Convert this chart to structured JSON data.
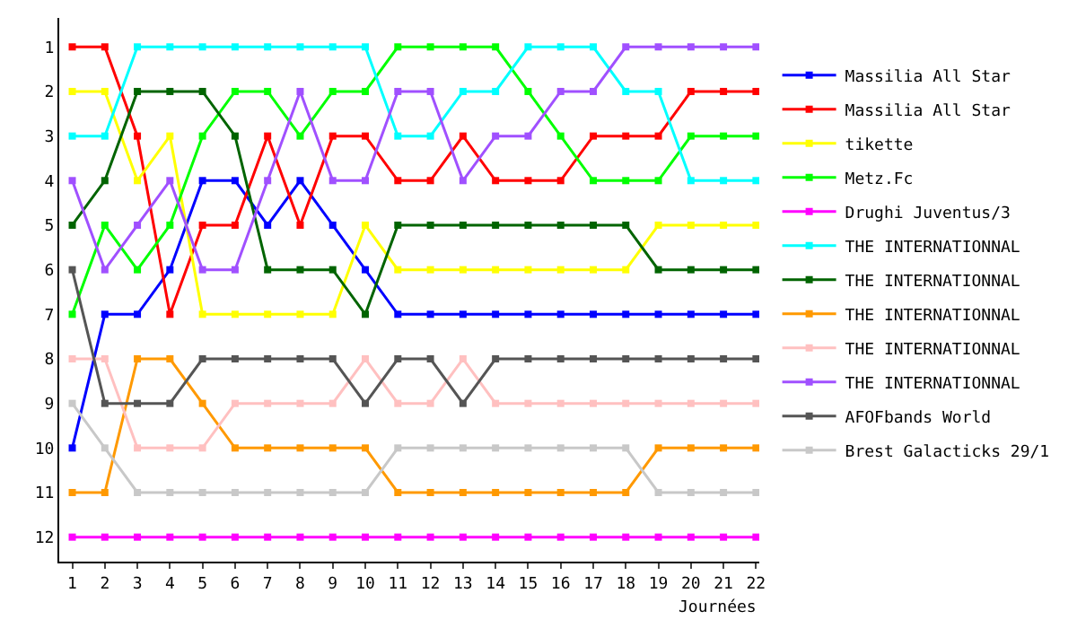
{
  "chart_data": {
    "type": "line",
    "xlabel": "Journées",
    "x": [
      1,
      2,
      3,
      4,
      5,
      6,
      7,
      8,
      9,
      10,
      11,
      12,
      13,
      14,
      15,
      16,
      17,
      18,
      19,
      20,
      21,
      22
    ],
    "xlim": [
      0.6,
      22.1
    ],
    "xticks": [
      1,
      2,
      3,
      4,
      5,
      6,
      7,
      8,
      9,
      10,
      11,
      12,
      13,
      14,
      15,
      16,
      17,
      18,
      19,
      20,
      21,
      22
    ],
    "ylim": [
      12.55,
      0.35
    ],
    "yticks": [
      1,
      2,
      3,
      4,
      5,
      6,
      7,
      8,
      9,
      10,
      11,
      12
    ],
    "legend": "right",
    "marker": "square",
    "line_style": "solid",
    "series": [
      {
        "name": "Massilia All Star",
        "color": "#0000ff",
        "values": [
          10,
          7,
          7,
          6,
          4,
          4,
          5,
          4,
          5,
          6,
          7,
          7,
          7,
          7,
          7,
          7,
          7,
          7,
          7,
          7,
          7,
          7
        ]
      },
      {
        "name": "Massilia All Star",
        "color": "#ff0000",
        "values": [
          1,
          1,
          3,
          7,
          5,
          5,
          3,
          5,
          3,
          3,
          4,
          4,
          3,
          4,
          4,
          4,
          3,
          3,
          3,
          2,
          2,
          2
        ]
      },
      {
        "name": "tikette",
        "color": "#ffff00",
        "values": [
          2,
          2,
          4,
          3,
          7,
          7,
          7,
          7,
          7,
          5,
          6,
          6,
          6,
          6,
          6,
          6,
          6,
          6,
          5,
          5,
          5,
          5
        ]
      },
      {
        "name": "Metz.Fc",
        "color": "#00ff00",
        "values": [
          7,
          5,
          6,
          5,
          3,
          2,
          2,
          3,
          2,
          2,
          1,
          1,
          1,
          1,
          2,
          3,
          4,
          4,
          4,
          3,
          3,
          3
        ]
      },
      {
        "name": "Drughi Juventus/3",
        "color": "#ff00ff",
        "values": [
          12,
          12,
          12,
          12,
          12,
          12,
          12,
          12,
          12,
          12,
          12,
          12,
          12,
          12,
          12,
          12,
          12,
          12,
          12,
          12,
          12,
          12
        ]
      },
      {
        "name": "THE INTERNATIONNAL",
        "color": "#00ffff",
        "values": [
          3,
          3,
          1,
          1,
          1,
          1,
          1,
          1,
          1,
          1,
          3,
          3,
          2,
          2,
          1,
          1,
          1,
          2,
          2,
          4,
          4,
          4
        ]
      },
      {
        "name": "THE INTERNATIONNAL",
        "color": "#006400",
        "values": [
          5,
          4,
          2,
          2,
          2,
          3,
          6,
          6,
          6,
          7,
          5,
          5,
          5,
          5,
          5,
          5,
          5,
          5,
          6,
          6,
          6,
          6
        ]
      },
      {
        "name": "THE INTERNATIONNAL",
        "color": "#ff9900",
        "values": [
          11,
          11,
          8,
          8,
          9,
          10,
          10,
          10,
          10,
          10,
          11,
          11,
          11,
          11,
          11,
          11,
          11,
          11,
          10,
          10,
          10,
          10
        ]
      },
      {
        "name": "THE INTERNATIONNAL",
        "color": "#ffc0c0",
        "values": [
          8,
          8,
          10,
          10,
          10,
          9,
          9,
          9,
          9,
          8,
          9,
          9,
          8,
          9,
          9,
          9,
          9,
          9,
          9,
          9,
          9,
          9
        ]
      },
      {
        "name": "THE INTERNATIONNAL",
        "color": "#a050ff",
        "values": [
          4,
          6,
          5,
          4,
          6,
          6,
          4,
          2,
          4,
          4,
          2,
          2,
          4,
          3,
          3,
          2,
          2,
          1,
          1,
          1,
          1,
          1
        ]
      },
      {
        "name": "AFOFbands World",
        "color": "#555555",
        "values": [
          6,
          9,
          9,
          9,
          8,
          8,
          8,
          8,
          8,
          9,
          8,
          8,
          9,
          8,
          8,
          8,
          8,
          8,
          8,
          8,
          8,
          8
        ]
      },
      {
        "name": "Brest Galacticks 29/1",
        "color": "#c8c8c8",
        "values": [
          9,
          10,
          11,
          11,
          11,
          11,
          11,
          11,
          11,
          11,
          10,
          10,
          10,
          10,
          10,
          10,
          10,
          10,
          11,
          11,
          11,
          11
        ]
      }
    ]
  }
}
